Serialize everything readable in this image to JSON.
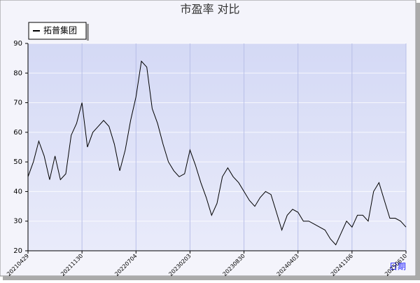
{
  "chart_data": {
    "type": "line",
    "title": "市盈率  对比",
    "x_label": "日期",
    "categories": [
      "20210429",
      null,
      null,
      null,
      null,
      null,
      null,
      null,
      null,
      null,
      "20211130",
      null,
      null,
      null,
      null,
      null,
      null,
      null,
      null,
      null,
      "20220704",
      null,
      null,
      null,
      null,
      null,
      null,
      null,
      null,
      null,
      "20230203",
      null,
      null,
      null,
      null,
      null,
      null,
      null,
      null,
      null,
      "20230830",
      null,
      null,
      null,
      null,
      null,
      null,
      null,
      null,
      null,
      "20240403",
      null,
      null,
      null,
      null,
      null,
      null,
      null,
      null,
      null,
      "20241106",
      null,
      null,
      null,
      null,
      null,
      null,
      null,
      null,
      null,
      "20250610"
    ],
    "series": [
      {
        "name": "拓普集团",
        "color": "#000000",
        "values": [
          45,
          50,
          57,
          52,
          44,
          52,
          44,
          46,
          59,
          63,
          70,
          55,
          60,
          62,
          64,
          62,
          56,
          47,
          54,
          64,
          72,
          84,
          82,
          68,
          63,
          56,
          50,
          47,
          45,
          46,
          54,
          49,
          43,
          38,
          32,
          36,
          45,
          48,
          45,
          43,
          40,
          37,
          35,
          38,
          40,
          39,
          33,
          27,
          32,
          34,
          33,
          30,
          30,
          29,
          28,
          27,
          24,
          22,
          26,
          30,
          28,
          32,
          32,
          30,
          40,
          43,
          37,
          31,
          31,
          30,
          28
        ]
      }
    ],
    "ylim": [
      20,
      90
    ],
    "yticks": [
      20,
      30,
      40,
      50,
      60,
      70,
      80,
      90
    ],
    "grid": true
  }
}
